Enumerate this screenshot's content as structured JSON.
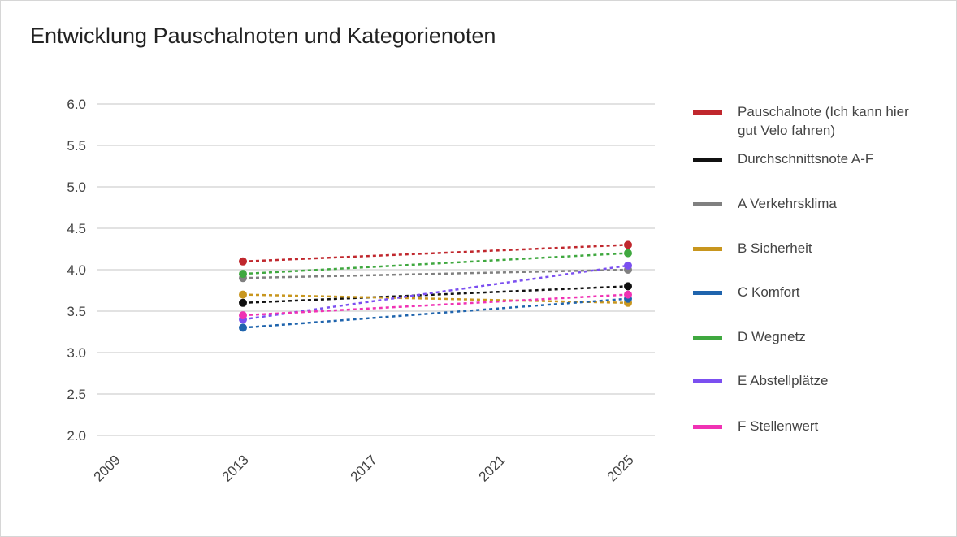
{
  "chart_data": {
    "type": "line",
    "title": "Entwicklung Pauschalnoten und Kategorienoten",
    "x": [
      2013,
      2025
    ],
    "xlim": [
      2009,
      2025
    ],
    "xticks": [
      2009,
      2013,
      2017,
      2021,
      2025
    ],
    "ylim": [
      2.0,
      6.0
    ],
    "yticks": [
      {
        "value": 2,
        "label": "2.0"
      },
      {
        "value": 2.5,
        "label": "2.5"
      },
      {
        "value": 3,
        "label": "3.0"
      },
      {
        "value": 3.5,
        "label": "3.5"
      },
      {
        "value": 4,
        "label": "4.0"
      },
      {
        "value": 4.5,
        "label": "4.5"
      },
      {
        "value": 5,
        "label": "5.0"
      },
      {
        "value": 5.5,
        "label": "5.5"
      },
      {
        "value": 6,
        "label": "6.0"
      }
    ],
    "grid": true,
    "legend": "right",
    "series": [
      {
        "name": "Pauschalnote (Ich kann hier gut Velo fahren)",
        "color": "#c0272d",
        "values": [
          4.1,
          4.3
        ]
      },
      {
        "name": "Durchschnittsnote A-F",
        "color": "#111111",
        "values": [
          3.6,
          3.8
        ]
      },
      {
        "name": "A Verkehrsklima",
        "color": "#808080",
        "values": [
          3.9,
          4.0
        ]
      },
      {
        "name": "B Sicherheit",
        "color": "#c8961e",
        "values": [
          3.7,
          3.6
        ]
      },
      {
        "name": "C Komfort",
        "color": "#1f64ad",
        "values": [
          3.3,
          3.65
        ]
      },
      {
        "name": "D Wegnetz",
        "color": "#3fa83f",
        "values": [
          3.95,
          4.2
        ]
      },
      {
        "name": "E Abstellplätze",
        "color": "#7b4ff0",
        "values": [
          3.4,
          4.05
        ]
      },
      {
        "name": "F Stellenwert",
        "color": "#f032b4",
        "values": [
          3.45,
          3.7
        ]
      }
    ]
  }
}
